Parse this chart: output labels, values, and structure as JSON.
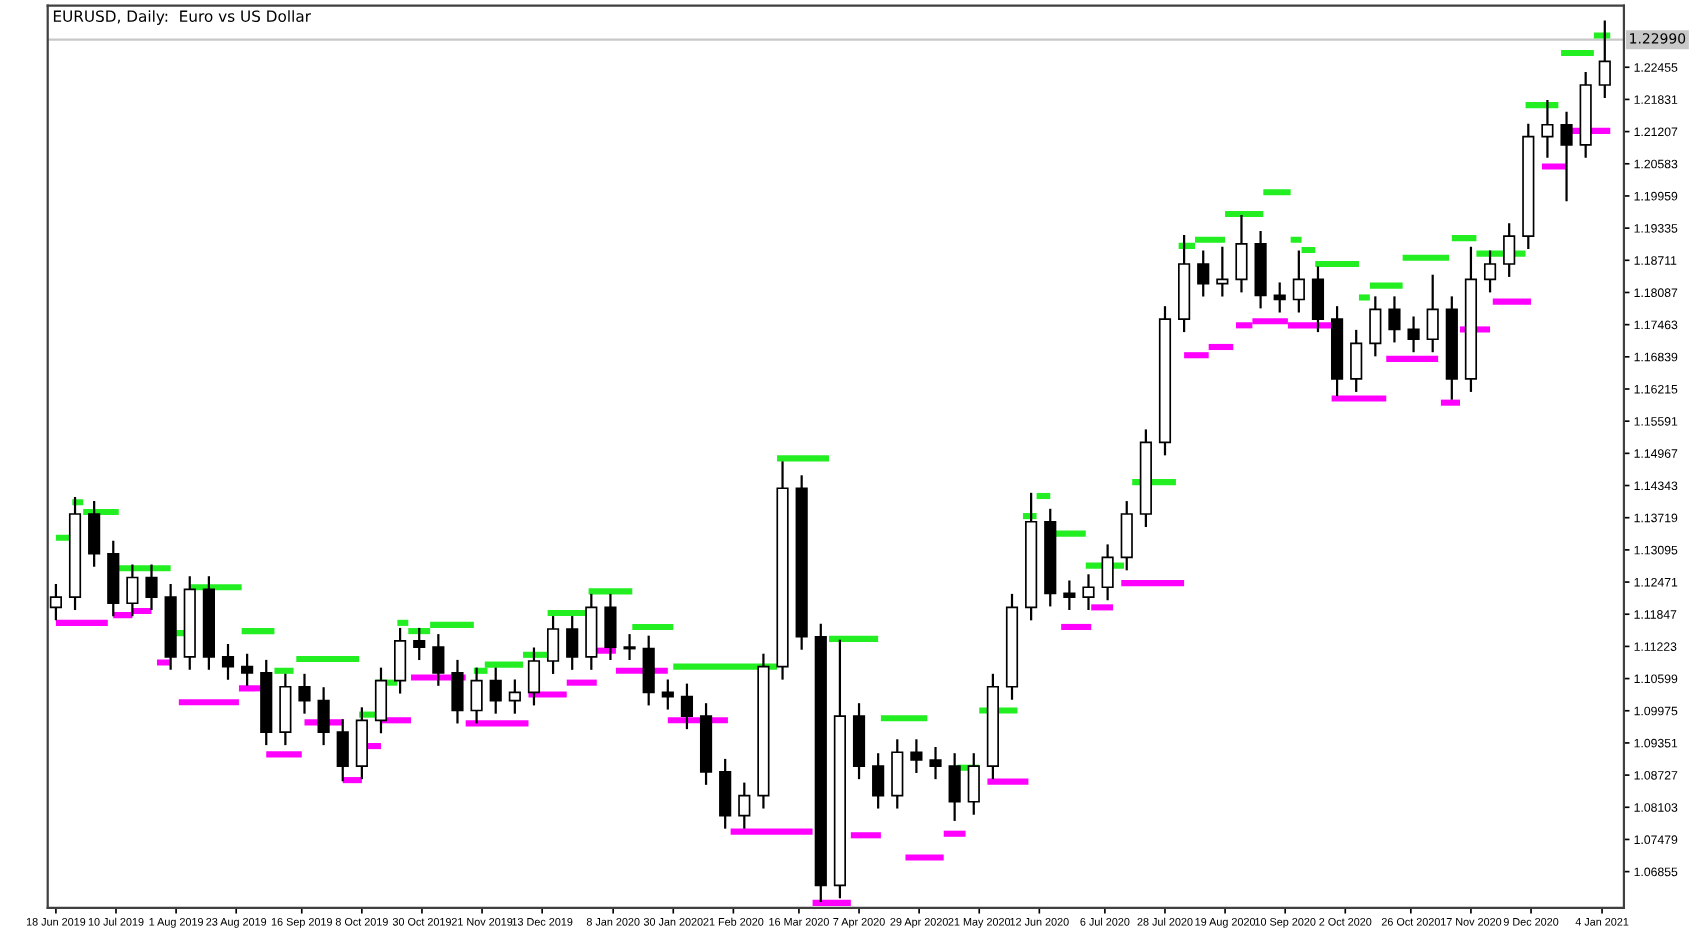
{
  "chart_data": {
    "type": "candlestick",
    "title": "EURUSD, Daily:  Euro vs US Dollar",
    "color": "#000000",
    "x": [
      "2019-06-18",
      "2019-06-25",
      "2019-07-02",
      "2019-07-09",
      "2019-07-16",
      "2019-07-23",
      "2019-07-30",
      "2019-08-06",
      "2019-08-13",
      "2019-08-20",
      "2019-08-27",
      "2019-09-03",
      "2019-09-10",
      "2019-09-17",
      "2019-09-24",
      "2019-10-01",
      "2019-10-08",
      "2019-10-15",
      "2019-10-22",
      "2019-10-29",
      "2019-11-05",
      "2019-11-12",
      "2019-11-19",
      "2019-11-26",
      "2019-12-03",
      "2019-12-10",
      "2019-12-17",
      "2019-12-24",
      "2019-12-31",
      "2020-01-07",
      "2020-01-14",
      "2020-01-21",
      "2020-01-28",
      "2020-02-04",
      "2020-02-11",
      "2020-02-18",
      "2020-02-25",
      "2020-03-03",
      "2020-03-10",
      "2020-03-17",
      "2020-03-24",
      "2020-03-31",
      "2020-04-07",
      "2020-04-14",
      "2020-04-21",
      "2020-04-28",
      "2020-05-05",
      "2020-05-12",
      "2020-05-19",
      "2020-05-26",
      "2020-06-02",
      "2020-06-09",
      "2020-06-16",
      "2020-06-23",
      "2020-06-30",
      "2020-07-07",
      "2020-07-14",
      "2020-07-21",
      "2020-07-28",
      "2020-08-04",
      "2020-08-11",
      "2020-08-18",
      "2020-08-25",
      "2020-09-01",
      "2020-09-08",
      "2020-09-15",
      "2020-09-22",
      "2020-09-29",
      "2020-10-06",
      "2020-10-13",
      "2020-10-20",
      "2020-10-27",
      "2020-11-03",
      "2020-11-10",
      "2020-11-17",
      "2020-11-24",
      "2020-12-01",
      "2020-12-08",
      "2020-12-15",
      "2020-12-22",
      "2020-12-29",
      "2021-01-05"
    ],
    "ohlc": [
      [
        1.1198,
        1.1241,
        1.1175,
        1.1218
      ],
      [
        1.1218,
        1.141,
        1.1195,
        1.1379
      ],
      [
        1.1379,
        1.1402,
        1.1279,
        1.1302
      ],
      [
        1.1302,
        1.1325,
        1.1183,
        1.1206
      ],
      [
        1.1206,
        1.1279,
        1.1183,
        1.1256
      ],
      [
        1.1256,
        1.1279,
        1.1195,
        1.1218
      ],
      [
        1.1218,
        1.1241,
        1.1079,
        1.1102
      ],
      [
        1.1102,
        1.1256,
        1.1079,
        1.1233
      ],
      [
        1.1233,
        1.1256,
        1.1079,
        1.1102
      ],
      [
        1.1102,
        1.1125,
        1.106,
        1.1083
      ],
      [
        1.1083,
        1.1106,
        1.1048,
        1.1071
      ],
      [
        1.1071,
        1.1094,
        1.0933,
        1.0956
      ],
      [
        1.0956,
        1.1067,
        1.0933,
        1.1044
      ],
      [
        1.1044,
        1.1067,
        1.0994,
        1.1017
      ],
      [
        1.1017,
        1.1041,
        1.0933,
        1.0956
      ],
      [
        1.0956,
        1.0979,
        1.0863,
        1.089
      ],
      [
        1.089,
        1.1002,
        1.0867,
        1.0979
      ],
      [
        1.0979,
        1.1079,
        1.0956,
        1.1056
      ],
      [
        1.1056,
        1.1156,
        1.1033,
        1.1133
      ],
      [
        1.1133,
        1.1156,
        1.1098,
        1.1121
      ],
      [
        1.1121,
        1.1144,
        1.1048,
        1.1071
      ],
      [
        1.1071,
        1.1094,
        1.0975,
        1.0998
      ],
      [
        1.0998,
        1.1079,
        1.0975,
        1.1056
      ],
      [
        1.1056,
        1.1079,
        1.0994,
        1.1017
      ],
      [
        1.1017,
        1.1056,
        1.0994,
        1.1033
      ],
      [
        1.1033,
        1.1118,
        1.101,
        1.1094
      ],
      [
        1.1094,
        1.1179,
        1.1071,
        1.1156
      ],
      [
        1.1156,
        1.1179,
        1.1079,
        1.1102
      ],
      [
        1.1102,
        1.1222,
        1.1079,
        1.1198
      ],
      [
        1.1198,
        1.1222,
        1.1098,
        1.1121
      ],
      [
        1.1121,
        1.1144,
        1.1098,
        1.1118
      ],
      [
        1.1118,
        1.1141,
        1.101,
        1.1033
      ],
      [
        1.1033,
        1.1056,
        1.1002,
        1.1025
      ],
      [
        1.1025,
        1.1048,
        1.0964,
        1.0987
      ],
      [
        1.0987,
        1.101,
        1.0856,
        1.0879
      ],
      [
        1.0879,
        1.0902,
        1.0771,
        1.0794
      ],
      [
        1.0794,
        1.0856,
        1.0771,
        1.0833
      ],
      [
        1.0833,
        1.1106,
        1.081,
        1.1083
      ],
      [
        1.1083,
        1.1479,
        1.106,
        1.1429
      ],
      [
        1.1429,
        1.1452,
        1.1118,
        1.1141
      ],
      [
        1.1141,
        1.1164,
        1.0629,
        1.0659
      ],
      [
        1.0659,
        1.1133,
        1.0636,
        1.0987
      ],
      [
        1.0987,
        1.101,
        1.0867,
        1.089
      ],
      [
        1.089,
        1.0913,
        1.081,
        1.0833
      ],
      [
        1.0833,
        1.094,
        1.081,
        1.0917
      ],
      [
        1.0917,
        1.094,
        1.0879,
        1.0902
      ],
      [
        1.0902,
        1.0925,
        1.0867,
        1.089
      ],
      [
        1.089,
        1.0913,
        1.0786,
        1.0821
      ],
      [
        1.0821,
        1.0913,
        1.0798,
        1.089
      ],
      [
        1.089,
        1.1067,
        1.0867,
        1.1044
      ],
      [
        1.1044,
        1.1222,
        1.1021,
        1.1198
      ],
      [
        1.1198,
        1.1418,
        1.1175,
        1.1364
      ],
      [
        1.1364,
        1.1387,
        1.1202,
        1.1225
      ],
      [
        1.1225,
        1.1248,
        1.1195,
        1.1218
      ],
      [
        1.1218,
        1.126,
        1.1195,
        1.1237
      ],
      [
        1.1237,
        1.1318,
        1.1214,
        1.1295
      ],
      [
        1.1295,
        1.1402,
        1.1272,
        1.1379
      ],
      [
        1.1379,
        1.1541,
        1.1356,
        1.1518
      ],
      [
        1.1518,
        1.178,
        1.1495,
        1.1757
      ],
      [
        1.1757,
        1.1918,
        1.1734,
        1.1864
      ],
      [
        1.1864,
        1.1888,
        1.1803,
        1.1826
      ],
      [
        1.1826,
        1.1895,
        1.1803,
        1.1834
      ],
      [
        1.1834,
        1.1957,
        1.1811,
        1.1903
      ],
      [
        1.1903,
        1.1926,
        1.178,
        1.1803
      ],
      [
        1.1803,
        1.1826,
        1.1772,
        1.1795
      ],
      [
        1.1795,
        1.1888,
        1.1772,
        1.1834
      ],
      [
        1.1834,
        1.1857,
        1.1734,
        1.1757
      ],
      [
        1.1757,
        1.178,
        1.161,
        1.1641
      ],
      [
        1.1641,
        1.1734,
        1.1618,
        1.171
      ],
      [
        1.171,
        1.1799,
        1.1687,
        1.1776
      ],
      [
        1.1776,
        1.1799,
        1.1714,
        1.1737
      ],
      [
        1.1737,
        1.176,
        1.1695,
        1.1718
      ],
      [
        1.1718,
        1.1841,
        1.1695,
        1.1776
      ],
      [
        1.1776,
        1.1799,
        1.1603,
        1.1641
      ],
      [
        1.1641,
        1.1895,
        1.1618,
        1.1834
      ],
      [
        1.1834,
        1.1888,
        1.1811,
        1.1864
      ],
      [
        1.1864,
        1.1941,
        1.1841,
        1.1918
      ],
      [
        1.1918,
        1.2134,
        1.1895,
        1.2111
      ],
      [
        1.2111,
        1.218,
        1.2072,
        1.2134
      ],
      [
        1.2134,
        1.2157,
        1.1988,
        1.2095
      ],
      [
        1.2095,
        1.2234,
        1.2072,
        1.2211
      ],
      [
        1.2211,
        1.2334,
        1.2188,
        1.2257
      ]
    ],
    "series": [
      {
        "type": "line",
        "color": "#22ee22",
        "x": [
          "2019-06-18",
          "2019-06-24"
        ],
        "values": [
          1.1333,
          1.1333
        ]
      },
      {
        "type": "line",
        "color": "#22ee22",
        "x": [
          "2019-06-24",
          "2019-06-28"
        ],
        "values": [
          1.1402,
          1.1402
        ]
      },
      {
        "type": "line",
        "color": "#22ee22",
        "x": [
          "2019-06-28",
          "2019-07-11"
        ],
        "values": [
          1.1383,
          1.1383
        ]
      },
      {
        "type": "line",
        "color": "#22ee22",
        "x": [
          "2019-07-11",
          "2019-07-30"
        ],
        "values": [
          1.1274,
          1.1274
        ]
      },
      {
        "type": "line",
        "color": "#22ee22",
        "x": [
          "2019-08-01",
          "2019-08-06"
        ],
        "values": [
          1.1148,
          1.1148
        ]
      },
      {
        "type": "line",
        "color": "#22ee22",
        "x": [
          "2019-08-06",
          "2019-08-25"
        ],
        "values": [
          1.1237,
          1.1237
        ]
      },
      {
        "type": "line",
        "color": "#22ee22",
        "x": [
          "2019-08-25",
          "2019-09-06"
        ],
        "values": [
          1.1152,
          1.1152
        ]
      },
      {
        "type": "line",
        "color": "#22ee22",
        "x": [
          "2019-09-06",
          "2019-09-13"
        ],
        "values": [
          1.1075,
          1.1075
        ]
      },
      {
        "type": "line",
        "color": "#22ee22",
        "x": [
          "2019-09-14",
          "2019-10-07"
        ],
        "values": [
          1.1098,
          1.1098
        ]
      },
      {
        "type": "line",
        "color": "#22ee22",
        "x": [
          "2019-10-07",
          "2019-10-14"
        ],
        "values": [
          1.099,
          1.099
        ]
      },
      {
        "type": "line",
        "color": "#22ee22",
        "x": [
          "2019-10-13",
          "2019-10-21"
        ],
        "values": [
          1.1052,
          1.1052
        ]
      },
      {
        "type": "line",
        "color": "#22ee22",
        "x": [
          "2019-10-21",
          "2019-10-25"
        ],
        "values": [
          1.1168,
          1.1168
        ]
      },
      {
        "type": "line",
        "color": "#22ee22",
        "x": [
          "2019-10-25",
          "2019-11-02"
        ],
        "values": [
          1.1152,
          1.1152
        ]
      },
      {
        "type": "line",
        "color": "#22ee22",
        "x": [
          "2019-11-02",
          "2019-11-18"
        ],
        "values": [
          1.1164,
          1.1164
        ]
      },
      {
        "type": "line",
        "color": "#22ee22",
        "x": [
          "2019-11-18",
          "2019-11-23"
        ],
        "values": [
          1.1075,
          1.1075
        ]
      },
      {
        "type": "line",
        "color": "#22ee22",
        "x": [
          "2019-11-22",
          "2019-12-06"
        ],
        "values": [
          1.1087,
          1.1087
        ]
      },
      {
        "type": "line",
        "color": "#22ee22",
        "x": [
          "2019-12-06",
          "2019-12-15"
        ],
        "values": [
          1.1106,
          1.1106
        ]
      },
      {
        "type": "line",
        "color": "#22ee22",
        "x": [
          "2019-12-15",
          "2019-12-30"
        ],
        "values": [
          1.1187,
          1.1187
        ]
      },
      {
        "type": "line",
        "color": "#22ee22",
        "x": [
          "2019-12-30",
          "2020-01-15"
        ],
        "values": [
          1.1229,
          1.1229
        ]
      },
      {
        "type": "line",
        "color": "#22ee22",
        "x": [
          "2020-01-15",
          "2020-01-30"
        ],
        "values": [
          1.116,
          1.116
        ]
      },
      {
        "type": "line",
        "color": "#22ee22",
        "x": [
          "2020-01-30",
          "2020-03-08"
        ],
        "values": [
          1.1083,
          1.1083
        ]
      },
      {
        "type": "line",
        "color": "#22ee22",
        "x": [
          "2020-03-08",
          "2020-03-27"
        ],
        "values": [
          1.1487,
          1.1487
        ]
      },
      {
        "type": "line",
        "color": "#22ee22",
        "x": [
          "2020-03-27",
          "2020-04-14"
        ],
        "values": [
          1.1137,
          1.1137
        ]
      },
      {
        "type": "line",
        "color": "#22ee22",
        "x": [
          "2020-04-15",
          "2020-05-02"
        ],
        "values": [
          1.0983,
          1.0983
        ]
      },
      {
        "type": "line",
        "color": "#22ee22",
        "x": [
          "2020-05-13",
          "2020-05-21"
        ],
        "values": [
          1.0887,
          1.0887
        ]
      },
      {
        "type": "line",
        "color": "#22ee22",
        "x": [
          "2020-05-21",
          "2020-06-04"
        ],
        "values": [
          1.0998,
          1.0998
        ]
      },
      {
        "type": "line",
        "color": "#22ee22",
        "x": [
          "2020-06-06",
          "2020-06-11"
        ],
        "values": [
          1.1375,
          1.1375
        ]
      },
      {
        "type": "line",
        "color": "#22ee22",
        "x": [
          "2020-06-11",
          "2020-06-16"
        ],
        "values": [
          1.1414,
          1.1414
        ]
      },
      {
        "type": "line",
        "color": "#22ee22",
        "x": [
          "2020-06-16",
          "2020-06-29"
        ],
        "values": [
          1.1341,
          1.1341
        ]
      },
      {
        "type": "line",
        "color": "#22ee22",
        "x": [
          "2020-06-29",
          "2020-07-13"
        ],
        "values": [
          1.1279,
          1.1279
        ]
      },
      {
        "type": "line",
        "color": "#22ee22",
        "x": [
          "2020-07-16",
          "2020-08-01"
        ],
        "values": [
          1.1441,
          1.1441
        ]
      },
      {
        "type": "line",
        "color": "#22ee22",
        "x": [
          "2020-08-02",
          "2020-08-08"
        ],
        "values": [
          1.1899,
          1.1899
        ]
      },
      {
        "type": "line",
        "color": "#22ee22",
        "x": [
          "2020-08-08",
          "2020-08-19"
        ],
        "values": [
          1.1911,
          1.1911
        ]
      },
      {
        "type": "line",
        "color": "#22ee22",
        "x": [
          "2020-08-19",
          "2020-09-02"
        ],
        "values": [
          1.1961,
          1.1961
        ]
      },
      {
        "type": "line",
        "color": "#22ee22",
        "x": [
          "2020-09-02",
          "2020-09-12"
        ],
        "values": [
          1.2003,
          1.2003
        ]
      },
      {
        "type": "line",
        "color": "#22ee22",
        "x": [
          "2020-09-12",
          "2020-09-16"
        ],
        "values": [
          1.1911,
          1.1911
        ]
      },
      {
        "type": "line",
        "color": "#22ee22",
        "x": [
          "2020-09-16",
          "2020-09-21"
        ],
        "values": [
          1.1891,
          1.1891
        ]
      },
      {
        "type": "line",
        "color": "#22ee22",
        "x": [
          "2020-09-21",
          "2020-10-07"
        ],
        "values": [
          1.1864,
          1.1864
        ]
      },
      {
        "type": "line",
        "color": "#22ee22",
        "x": [
          "2020-10-07",
          "2020-10-11"
        ],
        "values": [
          1.1799,
          1.1799
        ]
      },
      {
        "type": "line",
        "color": "#22ee22",
        "x": [
          "2020-10-11",
          "2020-10-23"
        ],
        "values": [
          1.1822,
          1.1822
        ]
      },
      {
        "type": "line",
        "color": "#22ee22",
        "x": [
          "2020-10-23",
          "2020-11-09"
        ],
        "values": [
          1.1876,
          1.1876
        ]
      },
      {
        "type": "line",
        "color": "#22ee22",
        "x": [
          "2020-11-10",
          "2020-11-19"
        ],
        "values": [
          1.1914,
          1.1914
        ]
      },
      {
        "type": "line",
        "color": "#22ee22",
        "x": [
          "2020-11-19",
          "2020-12-07"
        ],
        "values": [
          1.1884,
          1.1884
        ]
      },
      {
        "type": "line",
        "color": "#22ee22",
        "x": [
          "2020-12-07",
          "2020-12-19"
        ],
        "values": [
          1.2172,
          1.2172
        ]
      },
      {
        "type": "line",
        "color": "#22ee22",
        "x": [
          "2020-12-20",
          "2021-01-01"
        ],
        "values": [
          1.2273,
          1.2273
        ]
      },
      {
        "type": "line",
        "color": "#22ee22",
        "x": [
          "2021-01-01",
          "2021-01-07"
        ],
        "values": [
          1.2307,
          1.2307
        ]
      },
      {
        "type": "line",
        "color": "#ff00ff",
        "x": [
          "2019-06-18",
          "2019-07-07"
        ],
        "values": [
          1.1168,
          1.1168
        ]
      },
      {
        "type": "line",
        "color": "#ff00ff",
        "x": [
          "2019-07-09",
          "2019-07-16"
        ],
        "values": [
          1.1183,
          1.1183
        ]
      },
      {
        "type": "line",
        "color": "#ff00ff",
        "x": [
          "2019-07-16",
          "2019-07-23"
        ],
        "values": [
          1.1191,
          1.1191
        ]
      },
      {
        "type": "line",
        "color": "#ff00ff",
        "x": [
          "2019-07-25",
          "2019-07-30"
        ],
        "values": [
          1.1091,
          1.1091
        ]
      },
      {
        "type": "line",
        "color": "#ff00ff",
        "x": [
          "2019-08-02",
          "2019-08-24"
        ],
        "values": [
          1.1014,
          1.1014
        ]
      },
      {
        "type": "line",
        "color": "#ff00ff",
        "x": [
          "2019-08-24",
          "2019-09-02"
        ],
        "values": [
          1.1041,
          1.1041
        ]
      },
      {
        "type": "line",
        "color": "#ff00ff",
        "x": [
          "2019-09-03",
          "2019-09-16"
        ],
        "values": [
          1.0913,
          1.0913
        ]
      },
      {
        "type": "line",
        "color": "#ff00ff",
        "x": [
          "2019-09-17",
          "2019-10-01"
        ],
        "values": [
          1.0975,
          1.0975
        ]
      },
      {
        "type": "line",
        "color": "#ff00ff",
        "x": [
          "2019-10-01",
          "2019-10-08"
        ],
        "values": [
          1.0863,
          1.0863
        ]
      },
      {
        "type": "line",
        "color": "#ff00ff",
        "x": [
          "2019-10-08",
          "2019-10-15"
        ],
        "values": [
          1.0929,
          1.0929
        ]
      },
      {
        "type": "line",
        "color": "#ff00ff",
        "x": [
          "2019-10-15",
          "2019-10-26"
        ],
        "values": [
          1.0979,
          1.0979
        ]
      },
      {
        "type": "line",
        "color": "#ff00ff",
        "x": [
          "2019-10-26",
          "2019-11-15"
        ],
        "values": [
          1.1062,
          1.1062
        ]
      },
      {
        "type": "line",
        "color": "#ff00ff",
        "x": [
          "2019-11-15",
          "2019-12-08"
        ],
        "values": [
          1.0973,
          1.0973
        ]
      },
      {
        "type": "line",
        "color": "#ff00ff",
        "x": [
          "2019-12-08",
          "2019-12-22"
        ],
        "values": [
          1.1029,
          1.1029
        ]
      },
      {
        "type": "line",
        "color": "#ff00ff",
        "x": [
          "2019-12-22",
          "2020-01-02"
        ],
        "values": [
          1.1052,
          1.1052
        ]
      },
      {
        "type": "line",
        "color": "#ff00ff",
        "x": [
          "2020-01-02",
          "2020-01-09"
        ],
        "values": [
          1.1114,
          1.1114
        ]
      },
      {
        "type": "line",
        "color": "#ff00ff",
        "x": [
          "2020-01-09",
          "2020-01-28"
        ],
        "values": [
          1.1075,
          1.1075
        ]
      },
      {
        "type": "line",
        "color": "#ff00ff",
        "x": [
          "2020-01-28",
          "2020-02-19"
        ],
        "values": [
          1.0979,
          1.0979
        ]
      },
      {
        "type": "line",
        "color": "#ff00ff",
        "x": [
          "2020-02-20",
          "2020-03-21"
        ],
        "values": [
          1.0763,
          1.0763
        ]
      },
      {
        "type": "line",
        "color": "#ff00ff",
        "x": [
          "2020-03-21",
          "2020-04-04"
        ],
        "values": [
          1.0625,
          1.0625
        ]
      },
      {
        "type": "line",
        "color": "#ff00ff",
        "x": [
          "2020-04-04",
          "2020-04-15"
        ],
        "values": [
          1.0756,
          1.0756
        ]
      },
      {
        "type": "line",
        "color": "#ff00ff",
        "x": [
          "2020-04-24",
          "2020-05-08"
        ],
        "values": [
          1.0713,
          1.0713
        ]
      },
      {
        "type": "line",
        "color": "#ff00ff",
        "x": [
          "2020-05-08",
          "2020-05-16"
        ],
        "values": [
          1.0759,
          1.0759
        ]
      },
      {
        "type": "line",
        "color": "#ff00ff",
        "x": [
          "2020-05-24",
          "2020-06-08"
        ],
        "values": [
          1.086,
          1.086
        ]
      },
      {
        "type": "line",
        "color": "#ff00ff",
        "x": [
          "2020-06-20",
          "2020-07-01"
        ],
        "values": [
          1.116,
          1.116
        ]
      },
      {
        "type": "line",
        "color": "#ff00ff",
        "x": [
          "2020-07-01",
          "2020-07-09"
        ],
        "values": [
          1.1198,
          1.1198
        ]
      },
      {
        "type": "line",
        "color": "#ff00ff",
        "x": [
          "2020-07-12",
          "2020-08-04"
        ],
        "values": [
          1.1245,
          1.1245
        ]
      },
      {
        "type": "line",
        "color": "#ff00ff",
        "x": [
          "2020-08-04",
          "2020-08-13"
        ],
        "values": [
          1.1687,
          1.1687
        ]
      },
      {
        "type": "line",
        "color": "#ff00ff",
        "x": [
          "2020-08-13",
          "2020-08-22"
        ],
        "values": [
          1.1703,
          1.1703
        ]
      },
      {
        "type": "line",
        "color": "#ff00ff",
        "x": [
          "2020-08-23",
          "2020-08-29"
        ],
        "values": [
          1.1745,
          1.1745
        ]
      },
      {
        "type": "line",
        "color": "#ff00ff",
        "x": [
          "2020-08-29",
          "2020-09-11"
        ],
        "values": [
          1.1753,
          1.1753
        ]
      },
      {
        "type": "line",
        "color": "#ff00ff",
        "x": [
          "2020-09-11",
          "2020-09-27"
        ],
        "values": [
          1.1745,
          1.1745
        ]
      },
      {
        "type": "line",
        "color": "#ff00ff",
        "x": [
          "2020-09-27",
          "2020-10-17"
        ],
        "values": [
          1.1603,
          1.1603
        ]
      },
      {
        "type": "line",
        "color": "#ff00ff",
        "x": [
          "2020-10-17",
          "2020-11-05"
        ],
        "values": [
          1.168,
          1.168
        ]
      },
      {
        "type": "line",
        "color": "#ff00ff",
        "x": [
          "2020-11-06",
          "2020-11-13"
        ],
        "values": [
          1.1595,
          1.1595
        ]
      },
      {
        "type": "line",
        "color": "#ff00ff",
        "x": [
          "2020-11-13",
          "2020-11-24"
        ],
        "values": [
          1.1737,
          1.1737
        ]
      },
      {
        "type": "line",
        "color": "#ff00ff",
        "x": [
          "2020-11-25",
          "2020-12-09"
        ],
        "values": [
          1.1791,
          1.1791
        ]
      },
      {
        "type": "line",
        "color": "#ff00ff",
        "x": [
          "2020-12-13",
          "2020-12-22"
        ],
        "values": [
          1.2053,
          1.2053
        ]
      },
      {
        "type": "line",
        "color": "#ff00ff",
        "x": [
          "2020-12-22",
          "2021-01-07"
        ],
        "values": [
          1.2122,
          1.2122
        ]
      }
    ],
    "ref_lines": [
      {
        "axis": "y",
        "value": 1.2299,
        "label": "1.22990",
        "color": "#c8c8c8"
      }
    ],
    "xlim": [
      "2019-06-15",
      "2021-01-12"
    ],
    "ylim": [
      1.0615,
      1.2365
    ],
    "xticks": [
      {
        "value": "2019-06-18",
        "label": "18 Jun 2019"
      },
      {
        "value": "2019-07-10",
        "label": "10 Jul 2019"
      },
      {
        "value": "2019-08-01",
        "label": "1 Aug 2019"
      },
      {
        "value": "2019-08-23",
        "label": "23 Aug 2019"
      },
      {
        "value": "2019-09-16",
        "label": "16 Sep 2019"
      },
      {
        "value": "2019-10-08",
        "label": "8 Oct 2019"
      },
      {
        "value": "2019-10-30",
        "label": "30 Oct 2019"
      },
      {
        "value": "2019-11-21",
        "label": "21 Nov 2019"
      },
      {
        "value": "2019-12-13",
        "label": "13 Dec 2019"
      },
      {
        "value": "2020-01-08",
        "label": "8 Jan 2020"
      },
      {
        "value": "2020-01-30",
        "label": "30 Jan 2020"
      },
      {
        "value": "2020-02-21",
        "label": "21 Feb 2020"
      },
      {
        "value": "2020-03-16",
        "label": "16 Mar 2020"
      },
      {
        "value": "2020-04-07",
        "label": "7 Apr 2020"
      },
      {
        "value": "2020-04-29",
        "label": "29 Apr 2020"
      },
      {
        "value": "2020-05-21",
        "label": "21 May 2020"
      },
      {
        "value": "2020-06-12",
        "label": "12 Jun 2020"
      },
      {
        "value": "2020-07-06",
        "label": "6 Jul 2020"
      },
      {
        "value": "2020-07-28",
        "label": "28 Jul 2020"
      },
      {
        "value": "2020-08-19",
        "label": "19 Aug 2020"
      },
      {
        "value": "2020-09-10",
        "label": "10 Sep 2020"
      },
      {
        "value": "2020-10-02",
        "label": "2 Oct 2020"
      },
      {
        "value": "2020-10-26",
        "label": "26 Oct 2020"
      },
      {
        "value": "2020-11-17",
        "label": "17 Nov 2020"
      },
      {
        "value": "2020-12-09",
        "label": "9 Dec 2020"
      },
      {
        "value": "2021-01-04",
        "label": "4 Jan 2021"
      }
    ],
    "yticks": [
      1.06855,
      1.07479,
      1.08103,
      1.08727,
      1.09351,
      1.09975,
      1.10599,
      1.11223,
      1.11847,
      1.12471,
      1.13095,
      1.13719,
      1.14343,
      1.14967,
      1.15591,
      1.16215,
      1.16839,
      1.17463,
      1.18087,
      1.18711,
      1.19335,
      1.19959,
      1.20583,
      1.21207,
      1.21831,
      1.22455
    ],
    "grid": false,
    "legend": false
  }
}
